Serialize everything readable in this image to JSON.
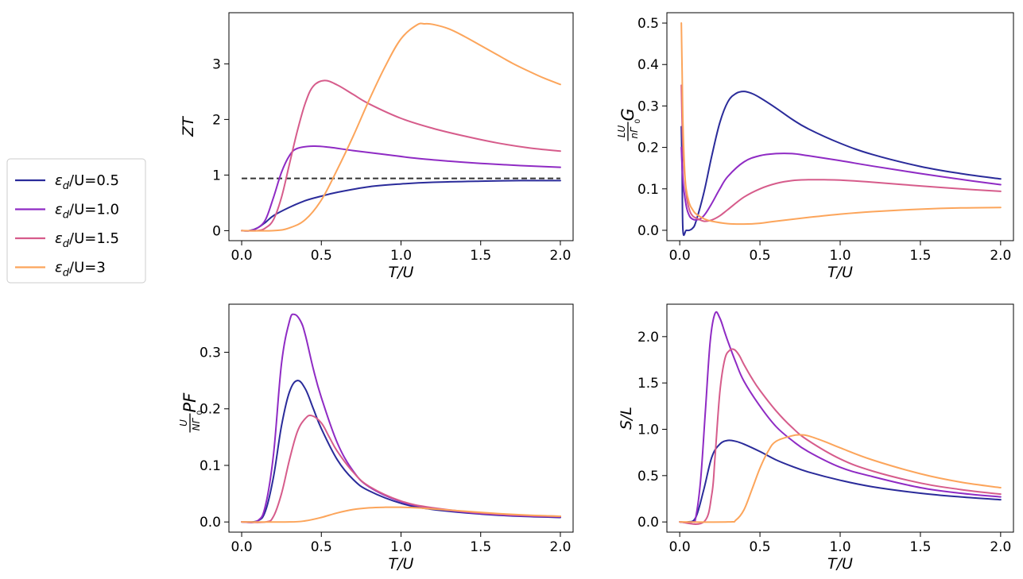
{
  "chart_data": [
    {
      "id": "zt",
      "type": "line",
      "ylabel": "ZT",
      "xlabel": "T/U",
      "xlim": [
        -0.08,
        2.08
      ],
      "ylim": [
        -0.18,
        3.92
      ],
      "xticks": [
        0.0,
        0.5,
        1.0,
        1.5,
        2.0
      ],
      "yticks": [
        0,
        1,
        2,
        3
      ],
      "xtick_labels": [
        "0.0",
        "0.5",
        "1.0",
        "1.5",
        "2.0"
      ],
      "ytick_labels": [
        "0",
        "1",
        "2",
        "3"
      ],
      "reference_line": {
        "y": 0.94,
        "style": "dashed",
        "color": "#333333"
      },
      "series": [
        {
          "name": "ε_d/U=0.5",
          "color": "#2a2b9a",
          "x": [
            0.0,
            0.05,
            0.1,
            0.15,
            0.2,
            0.3,
            0.4,
            0.5,
            0.6,
            0.8,
            1.0,
            1.2,
            1.5,
            1.75,
            2.0
          ],
          "y": [
            0.0,
            0.0,
            0.05,
            0.15,
            0.27,
            0.42,
            0.54,
            0.62,
            0.69,
            0.79,
            0.84,
            0.87,
            0.89,
            0.9,
            0.9
          ]
        },
        {
          "name": "ε_d/U=1.0",
          "color": "#8f2bc4",
          "x": [
            0.0,
            0.05,
            0.1,
            0.15,
            0.2,
            0.25,
            0.3,
            0.35,
            0.45,
            0.55,
            0.7,
            0.9,
            1.1,
            1.3,
            1.5,
            1.75,
            2.0
          ],
          "y": [
            0.0,
            0.0,
            0.05,
            0.2,
            0.6,
            1.05,
            1.35,
            1.48,
            1.52,
            1.5,
            1.44,
            1.37,
            1.3,
            1.25,
            1.21,
            1.17,
            1.14
          ]
        },
        {
          "name": "ε_d/U=1.5",
          "color": "#d65c8b",
          "x": [
            0.0,
            0.1,
            0.15,
            0.2,
            0.25,
            0.3,
            0.35,
            0.4,
            0.45,
            0.52,
            0.6,
            0.7,
            0.8,
            1.0,
            1.2,
            1.4,
            1.6,
            1.8,
            2.0
          ],
          "y": [
            0.0,
            0.0,
            0.05,
            0.2,
            0.6,
            1.2,
            1.8,
            2.3,
            2.6,
            2.7,
            2.62,
            2.45,
            2.28,
            2.02,
            1.84,
            1.7,
            1.58,
            1.49,
            1.43
          ]
        },
        {
          "name": "ε_d/U=3",
          "color": "#fca55b",
          "x": [
            0.0,
            0.2,
            0.3,
            0.4,
            0.5,
            0.6,
            0.7,
            0.8,
            0.9,
            1.0,
            1.1,
            1.15,
            1.2,
            1.3,
            1.4,
            1.5,
            1.6,
            1.7,
            1.8,
            1.9,
            2.0
          ],
          "y": [
            0.0,
            0.0,
            0.05,
            0.2,
            0.55,
            1.1,
            1.7,
            2.35,
            2.95,
            3.45,
            3.7,
            3.72,
            3.71,
            3.63,
            3.49,
            3.33,
            3.17,
            3.01,
            2.87,
            2.74,
            2.63
          ]
        }
      ]
    },
    {
      "id": "g",
      "type": "line",
      "ylabel": "(LU / nΓ₀) G",
      "ylabel_parts": {
        "num": "LU",
        "den": "nΓ",
        "den_sub": "0",
        "suffix": "G"
      },
      "xlabel": "T/U",
      "xlim": [
        -0.08,
        2.08
      ],
      "ylim": [
        -0.025,
        0.525
      ],
      "xticks": [
        0.0,
        0.5,
        1.0,
        1.5,
        2.0
      ],
      "yticks": [
        0.0,
        0.1,
        0.2,
        0.3,
        0.4,
        0.5
      ],
      "xtick_labels": [
        "0.0",
        "0.5",
        "1.0",
        "1.5",
        "2.0"
      ],
      "ytick_labels": [
        "0.0",
        "0.1",
        "0.2",
        "0.3",
        "0.4",
        "0.5"
      ],
      "series": [
        {
          "name": "ε_d/U=0.5",
          "color": "#2a2b9a",
          "x": [
            0.01,
            0.015,
            0.02,
            0.04,
            0.06,
            0.08,
            0.1,
            0.15,
            0.2,
            0.25,
            0.3,
            0.35,
            0.4,
            0.45,
            0.5,
            0.6,
            0.7,
            0.8,
            1.0,
            1.2,
            1.5,
            1.75,
            2.0
          ],
          "y": [
            0.25,
            0.15,
            0.0,
            0.0,
            0.0,
            0.005,
            0.02,
            0.09,
            0.18,
            0.26,
            0.31,
            0.33,
            0.335,
            0.33,
            0.32,
            0.295,
            0.268,
            0.245,
            0.21,
            0.183,
            0.154,
            0.137,
            0.124
          ]
        },
        {
          "name": "ε_d/U=1.0",
          "color": "#8f2bc4",
          "x": [
            0.01,
            0.02,
            0.04,
            0.06,
            0.08,
            0.1,
            0.13,
            0.16,
            0.2,
            0.25,
            0.3,
            0.4,
            0.5,
            0.6,
            0.7,
            0.8,
            1.0,
            1.2,
            1.5,
            1.75,
            2.0
          ],
          "y": [
            0.2,
            0.12,
            0.06,
            0.035,
            0.027,
            0.025,
            0.028,
            0.04,
            0.065,
            0.1,
            0.13,
            0.165,
            0.18,
            0.185,
            0.185,
            0.18,
            0.168,
            0.155,
            0.137,
            0.123,
            0.11
          ]
        },
        {
          "name": "ε_d/U=1.5",
          "color": "#d65c8b",
          "x": [
            0.01,
            0.02,
            0.04,
            0.06,
            0.08,
            0.1,
            0.15,
            0.2,
            0.25,
            0.3,
            0.4,
            0.5,
            0.6,
            0.7,
            0.8,
            0.9,
            1.0,
            1.2,
            1.5,
            1.75,
            2.0
          ],
          "y": [
            0.35,
            0.2,
            0.09,
            0.05,
            0.035,
            0.03,
            0.022,
            0.025,
            0.035,
            0.05,
            0.08,
            0.1,
            0.113,
            0.12,
            0.122,
            0.122,
            0.121,
            0.116,
            0.107,
            0.1,
            0.094
          ]
        },
        {
          "name": "ε_d/U=3",
          "color": "#fca55b",
          "x": [
            0.01,
            0.015,
            0.02,
            0.03,
            0.04,
            0.06,
            0.08,
            0.1,
            0.15,
            0.2,
            0.3,
            0.4,
            0.5,
            0.6,
            0.8,
            1.0,
            1.2,
            1.5,
            1.75,
            2.0
          ],
          "y": [
            0.5,
            0.38,
            0.26,
            0.15,
            0.1,
            0.065,
            0.05,
            0.04,
            0.028,
            0.022,
            0.016,
            0.015,
            0.017,
            0.022,
            0.031,
            0.039,
            0.045,
            0.051,
            0.054,
            0.055
          ]
        }
      ]
    },
    {
      "id": "pf",
      "type": "line",
      "ylabel": "(U / NΓ₀) PF",
      "ylabel_parts": {
        "num": "U",
        "den": "NΓ",
        "den_sub": "0",
        "suffix": "PF"
      },
      "xlabel": "T/U",
      "xlim": [
        -0.08,
        2.08
      ],
      "ylim": [
        -0.018,
        0.385
      ],
      "xticks": [
        0.0,
        0.5,
        1.0,
        1.5,
        2.0
      ],
      "yticks": [
        0.0,
        0.1,
        0.2,
        0.3
      ],
      "xtick_labels": [
        "0.0",
        "0.5",
        "1.0",
        "1.5",
        "2.0"
      ],
      "ytick_labels": [
        "0.0",
        "0.1",
        "0.2",
        "0.3"
      ],
      "series": [
        {
          "name": "ε_d/U=0.5",
          "color": "#2a2b9a",
          "x": [
            0.0,
            0.1,
            0.15,
            0.2,
            0.25,
            0.3,
            0.35,
            0.4,
            0.45,
            0.5,
            0.6,
            0.7,
            0.8,
            1.0,
            1.2,
            1.5,
            1.75,
            2.0
          ],
          "y": [
            0.0,
            0.002,
            0.02,
            0.08,
            0.17,
            0.23,
            0.25,
            0.235,
            0.2,
            0.165,
            0.11,
            0.075,
            0.055,
            0.033,
            0.022,
            0.014,
            0.01,
            0.008
          ]
        },
        {
          "name": "ε_d/U=1.0",
          "color": "#8f2bc4",
          "x": [
            0.0,
            0.1,
            0.15,
            0.2,
            0.25,
            0.3,
            0.33,
            0.37,
            0.4,
            0.45,
            0.5,
            0.6,
            0.7,
            0.8,
            1.0,
            1.2,
            1.5,
            1.75,
            2.0
          ],
          "y": [
            0.0,
            0.002,
            0.03,
            0.12,
            0.28,
            0.355,
            0.367,
            0.355,
            0.33,
            0.27,
            0.22,
            0.14,
            0.09,
            0.062,
            0.036,
            0.024,
            0.015,
            0.011,
            0.009
          ]
        },
        {
          "name": "ε_d/U=1.5",
          "color": "#d65c8b",
          "x": [
            0.0,
            0.15,
            0.2,
            0.25,
            0.3,
            0.35,
            0.4,
            0.44,
            0.5,
            0.55,
            0.6,
            0.7,
            0.8,
            1.0,
            1.2,
            1.5,
            1.75,
            2.0
          ],
          "y": [
            0.0,
            0.0,
            0.01,
            0.05,
            0.11,
            0.16,
            0.183,
            0.188,
            0.175,
            0.15,
            0.125,
            0.088,
            0.063,
            0.037,
            0.025,
            0.016,
            0.012,
            0.01
          ]
        },
        {
          "name": "ε_d/U=3",
          "color": "#fca55b",
          "x": [
            0.0,
            0.3,
            0.4,
            0.5,
            0.6,
            0.7,
            0.8,
            0.9,
            1.0,
            1.1,
            1.2,
            1.4,
            1.6,
            1.8,
            2.0
          ],
          "y": [
            0.0,
            0.0,
            0.002,
            0.008,
            0.016,
            0.022,
            0.025,
            0.026,
            0.026,
            0.025,
            0.023,
            0.019,
            0.015,
            0.012,
            0.01
          ]
        }
      ]
    },
    {
      "id": "sl",
      "type": "line",
      "ylabel": "S/L",
      "xlabel": "T/U",
      "xlim": [
        -0.08,
        2.08
      ],
      "ylim": [
        -0.11,
        2.35
      ],
      "xticks": [
        0.0,
        0.5,
        1.0,
        1.5,
        2.0
      ],
      "yticks": [
        0.0,
        0.5,
        1.0,
        1.5,
        2.0
      ],
      "xtick_labels": [
        "0.0",
        "0.5",
        "1.0",
        "1.5",
        "2.0"
      ],
      "ytick_labels": [
        "0.0",
        "0.5",
        "1.0",
        "1.5",
        "2.0"
      ],
      "series": [
        {
          "name": "ε_d/U=0.5",
          "color": "#2a2b9a",
          "x": [
            0.0,
            0.05,
            0.1,
            0.15,
            0.2,
            0.25,
            0.3,
            0.35,
            0.4,
            0.5,
            0.6,
            0.7,
            0.8,
            1.0,
            1.2,
            1.5,
            1.75,
            2.0
          ],
          "y": [
            0.0,
            0.0,
            0.05,
            0.35,
            0.7,
            0.84,
            0.88,
            0.87,
            0.84,
            0.76,
            0.67,
            0.6,
            0.54,
            0.45,
            0.38,
            0.31,
            0.27,
            0.24
          ]
        },
        {
          "name": "ε_d/U=1.0",
          "color": "#8f2bc4",
          "x": [
            0.0,
            0.08,
            0.1,
            0.13,
            0.16,
            0.19,
            0.22,
            0.25,
            0.28,
            0.3,
            0.35,
            0.4,
            0.5,
            0.6,
            0.7,
            0.8,
            1.0,
            1.2,
            1.5,
            1.75,
            2.0
          ],
          "y": [
            0.0,
            0.0,
            0.05,
            0.45,
            1.2,
            1.95,
            2.25,
            2.2,
            2.05,
            1.95,
            1.72,
            1.52,
            1.25,
            1.03,
            0.88,
            0.76,
            0.59,
            0.49,
            0.37,
            0.31,
            0.27
          ]
        },
        {
          "name": "ε_d/U=1.5",
          "color": "#d65c8b",
          "x": [
            0.0,
            0.15,
            0.2,
            0.22,
            0.25,
            0.28,
            0.31,
            0.34,
            0.37,
            0.4,
            0.45,
            0.5,
            0.6,
            0.7,
            0.8,
            1.0,
            1.2,
            1.5,
            1.75,
            2.0
          ],
          "y": [
            0.0,
            0.0,
            0.3,
            0.7,
            1.4,
            1.75,
            1.85,
            1.86,
            1.8,
            1.7,
            1.55,
            1.42,
            1.2,
            1.02,
            0.88,
            0.68,
            0.55,
            0.42,
            0.35,
            0.3
          ]
        },
        {
          "name": "ε_d/U=3",
          "color": "#fca55b",
          "x": [
            0.0,
            0.3,
            0.35,
            0.4,
            0.45,
            0.5,
            0.55,
            0.6,
            0.7,
            0.75,
            0.8,
            0.9,
            1.0,
            1.2,
            1.5,
            1.75,
            2.0
          ],
          "y": [
            0.0,
            0.0,
            0.02,
            0.13,
            0.35,
            0.58,
            0.76,
            0.87,
            0.93,
            0.94,
            0.93,
            0.87,
            0.8,
            0.67,
            0.52,
            0.43,
            0.37
          ]
        }
      ]
    }
  ],
  "legend": {
    "placement": "left-center",
    "items": [
      {
        "name": "ε_d/U=0.5",
        "base": "ε",
        "sub": "d",
        "rest": "/U=0.5",
        "color": "#2a2b9a"
      },
      {
        "name": "ε_d/U=1.0",
        "base": "ε",
        "sub": "d",
        "rest": "/U=1.0",
        "color": "#8f2bc4"
      },
      {
        "name": "ε_d/U=1.5",
        "base": "ε",
        "sub": "d",
        "rest": "/U=1.5",
        "color": "#d65c8b"
      },
      {
        "name": "ε_d/U=3",
        "base": "ε",
        "sub": "d",
        "rest": "/U=3",
        "color": "#fca55b"
      }
    ]
  }
}
